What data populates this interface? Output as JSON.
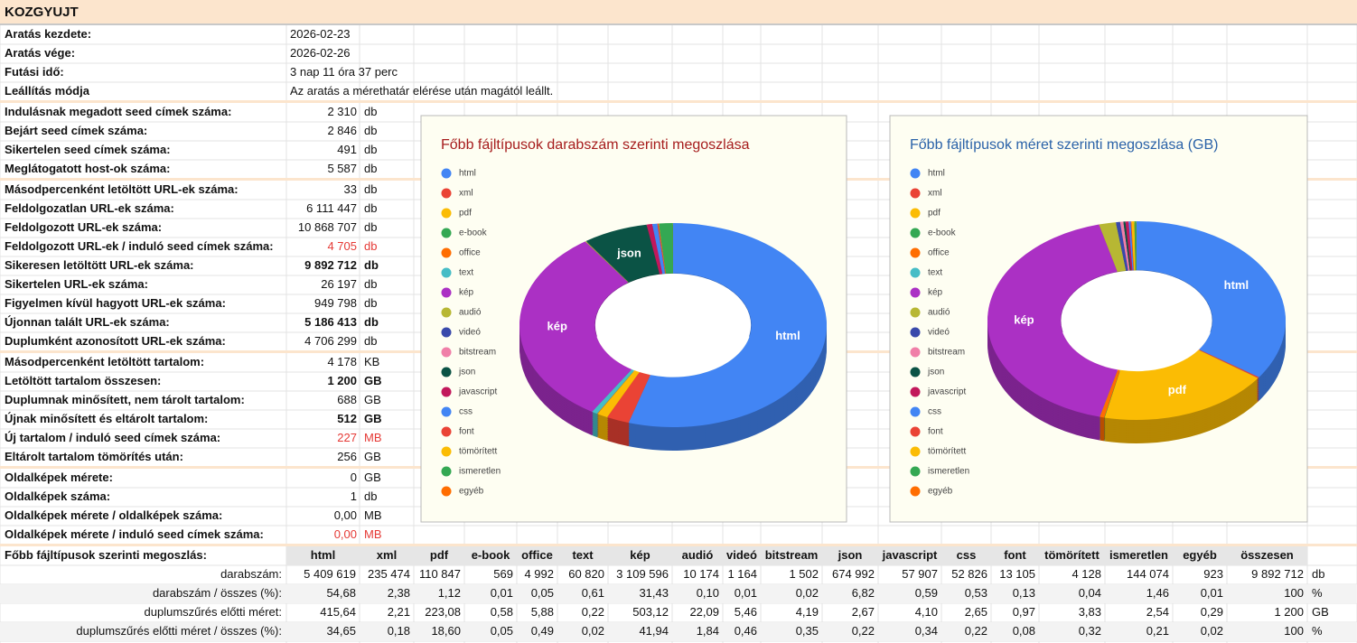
{
  "sheet": {
    "title": "KOZGYUJT",
    "info": [
      [
        "Aratás kezdete:",
        "2026-02-23"
      ],
      [
        "Aratás vége:",
        "2026-02-26"
      ],
      [
        "Futási idő:",
        "3 nap 11 óra 37 perc"
      ],
      [
        "Leállítás módja",
        "Az aratás a mérethatár elérése után magától leállt."
      ]
    ],
    "groups": [
      [
        {
          "label": "Indulásnak megadott seed címek száma:",
          "value": "2 310",
          "unit": "db"
        },
        {
          "label": "Bejárt seed címek száma:",
          "value": "2 846",
          "unit": "db"
        },
        {
          "label": "Sikertelen seed címek száma:",
          "value": "491",
          "unit": "db"
        },
        {
          "label": "Meglátogatott host-ok száma:",
          "value": "5 587",
          "unit": "db"
        }
      ],
      [
        {
          "label": "Másodpercenként letöltött URL-ek száma:",
          "value": "33",
          "unit": "db"
        },
        {
          "label": "Feldolgozatlan URL-ek száma:",
          "value": "6 111 447",
          "unit": "db"
        },
        {
          "label": "Feldolgozott URL-ek száma:",
          "value": "10 868 707",
          "unit": "db"
        },
        {
          "label": "Feldolgozott URL-ek / induló seed címek száma:",
          "value": "4 705",
          "unit": "db",
          "color": "#e53935"
        },
        {
          "label": "Sikeresen letöltött URL-ek száma:",
          "value": "9 892 712",
          "unit": "db",
          "bold": true
        },
        {
          "label": "Sikertelen URL-ek száma:",
          "value": "26 197",
          "unit": "db"
        },
        {
          "label": "Figyelmen kívül hagyott URL-ek száma:",
          "value": "949 798",
          "unit": "db"
        },
        {
          "label": "Újonnan talált URL-ek száma:",
          "value": "5 186 413",
          "unit": "db",
          "bold": true
        },
        {
          "label": "Duplumként azonosított URL-ek száma:",
          "value": "4 706 299",
          "unit": "db"
        }
      ],
      [
        {
          "label": "Másodpercenként letöltött tartalom:",
          "value": "4 178",
          "unit": "KB"
        },
        {
          "label": "Letöltött tartalom összesen:",
          "value": "1 200",
          "unit": "GB",
          "bold": true
        },
        {
          "label": "Duplumnak minősített, nem tárolt tartalom:",
          "value": "688",
          "unit": "GB"
        },
        {
          "label": "Újnak minősített és eltárolt tartalom:",
          "value": "512",
          "unit": "GB",
          "bold": true
        },
        {
          "label": "Új tartalom / induló seed címek száma:",
          "value": "227",
          "unit": "MB",
          "color": "#e53935"
        },
        {
          "label": "Eltárolt tartalom tömörítés után:",
          "value": "256",
          "unit": "GB"
        }
      ],
      [
        {
          "label": "Oldalképek mérete:",
          "value": "0",
          "unit": "GB"
        },
        {
          "label": "Oldalképek száma:",
          "value": "1",
          "unit": "db"
        },
        {
          "label": "Oldalképek mérete  / oldalképek száma:",
          "value": "0,00",
          "unit": "MB"
        },
        {
          "label": "Oldalképek mérete  / induló seed címek száma:",
          "value": "0,00",
          "unit": "MB",
          "color": "#e53935"
        }
      ]
    ],
    "breakdown": {
      "title": "Főbb fájltípusok szerinti megoszlás:",
      "columns": [
        "html",
        "xml",
        "pdf",
        "e-book",
        "office",
        "text",
        "kép",
        "audió",
        "videó",
        "bitstream",
        "json",
        "javascript",
        "css",
        "font",
        "tömörített",
        "ismeretlen",
        "egyéb",
        "összesen"
      ],
      "rows": [
        {
          "label": "darabszám:",
          "cells": [
            "5 409 619",
            "235 474",
            "110 847",
            "569",
            "4 992",
            "60 820",
            "3 109 596",
            "10 174",
            "1 164",
            "1 502",
            "674 992",
            "57 907",
            "52 826",
            "13 105",
            "4 128",
            "144 074",
            "923",
            "9 892 712"
          ],
          "unit": "db"
        },
        {
          "label": "darabszám / összes (%):",
          "cells": [
            "54,68",
            "2,38",
            "1,12",
            "0,01",
            "0,05",
            "0,61",
            "31,43",
            "0,10",
            "0,01",
            "0,02",
            "6,82",
            "0,59",
            "0,53",
            "0,13",
            "0,04",
            "1,46",
            "0,01",
            "100"
          ],
          "unit": "%"
        },
        {
          "label": "duplumszűrés előtti méret:",
          "cells": [
            "415,64",
            "2,21",
            "223,08",
            "0,58",
            "5,88",
            "0,22",
            "503,12",
            "22,09",
            "5,46",
            "4,19",
            "2,67",
            "4,10",
            "2,65",
            "0,97",
            "3,83",
            "2,54",
            "0,29",
            "1 200"
          ],
          "unit": "GB"
        },
        {
          "label": "duplumszűrés előtti méret / összes (%):",
          "cells": [
            "34,65",
            "0,18",
            "18,60",
            "0,05",
            "0,49",
            "0,02",
            "41,94",
            "1,84",
            "0,46",
            "0,35",
            "0,22",
            "0,34",
            "0,22",
            "0,08",
            "0,32",
            "0,21",
            "0,02",
            "100"
          ],
          "unit": "%"
        }
      ]
    }
  },
  "chart_data": [
    {
      "type": "pie",
      "title": "Főbb fájltípusok darabszám szerinti megoszlása",
      "title_color": "#a61c1c",
      "categories": [
        "html",
        "xml",
        "pdf",
        "e-book",
        "office",
        "text",
        "kép",
        "audió",
        "videó",
        "bitstream",
        "json",
        "javascript",
        "css",
        "font",
        "tömörített",
        "ismeretlen",
        "egyéb"
      ],
      "values": [
        54.68,
        2.38,
        1.12,
        0.01,
        0.05,
        0.61,
        31.43,
        0.1,
        0.01,
        0.02,
        6.82,
        0.59,
        0.53,
        0.13,
        0.04,
        1.46,
        0.01
      ],
      "slice_labels": [
        "html",
        null,
        null,
        null,
        null,
        null,
        "kép",
        null,
        null,
        null,
        "json",
        null,
        null,
        null,
        null,
        null,
        null
      ],
      "colors": [
        "#4285f4",
        "#ea4335",
        "#fbbc04",
        "#34a853",
        "#ff6d01",
        "#46bdc6",
        "#ab30c4",
        "#b7b733",
        "#3949ab",
        "#f07fa8",
        "#0b5345",
        "#c2185b",
        "#4285f4",
        "#ea4335",
        "#fbbc04",
        "#34a853",
        "#ff6d01"
      ]
    },
    {
      "type": "pie",
      "title": "Főbb fájltípusok méret szerinti megoszlása (GB)",
      "title_color": "#2a62a8",
      "categories": [
        "html",
        "xml",
        "pdf",
        "e-book",
        "office",
        "text",
        "kép",
        "audió",
        "videó",
        "bitstream",
        "json",
        "javascript",
        "css",
        "font",
        "tömörített",
        "ismeretlen",
        "egyéb"
      ],
      "values": [
        34.65,
        0.18,
        18.6,
        0.05,
        0.49,
        0.02,
        41.94,
        1.84,
        0.46,
        0.35,
        0.22,
        0.34,
        0.22,
        0.08,
        0.32,
        0.21,
        0.02
      ],
      "slice_labels": [
        "html",
        null,
        "pdf",
        null,
        null,
        null,
        "kép",
        null,
        null,
        null,
        null,
        null,
        null,
        null,
        null,
        null,
        null
      ],
      "colors": [
        "#4285f4",
        "#ea4335",
        "#fbbc04",
        "#34a853",
        "#ff6d01",
        "#46bdc6",
        "#ab30c4",
        "#b7b733",
        "#3949ab",
        "#f07fa8",
        "#0b5345",
        "#c2185b",
        "#4285f4",
        "#ea4335",
        "#fbbc04",
        "#34a853",
        "#ff6d01"
      ]
    }
  ]
}
